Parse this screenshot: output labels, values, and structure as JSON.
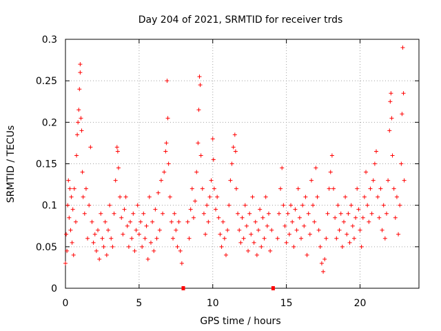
{
  "chart_data": {
    "type": "scatter",
    "title": "Day 204 of 2021, SRMTID for receiver trds",
    "xlabel": "GPS time / hours",
    "ylabel": "SRMTID / TECUs",
    "xlim": [
      0,
      24
    ],
    "ylim": [
      0,
      0.3
    ],
    "xticks": [
      0,
      5,
      10,
      15,
      20
    ],
    "xtick_labels": [
      "0",
      "5",
      "10",
      "15",
      "20"
    ],
    "yticks": [
      0,
      0.05,
      0.1,
      0.15,
      0.2,
      0.25,
      0.3
    ],
    "ytick_labels": [
      "0",
      "0.05",
      "0.1",
      "0.15",
      "0.2",
      "0.25",
      "0.3"
    ],
    "grid": true,
    "marker": "plus",
    "color": "#ff0000",
    "series_name": "SRMTID",
    "data_gaps_marked_at_hours": [
      8.0,
      14.1
    ],
    "points": [
      [
        0.0,
        0.03
      ],
      [
        0.05,
        0.065
      ],
      [
        0.1,
        0.045
      ],
      [
        0.15,
        0.1
      ],
      [
        0.2,
        0.13
      ],
      [
        0.25,
        0.085
      ],
      [
        0.3,
        0.12
      ],
      [
        0.35,
        0.07
      ],
      [
        0.4,
        0.11
      ],
      [
        0.45,
        0.055
      ],
      [
        0.5,
        0.095
      ],
      [
        0.55,
        0.04
      ],
      [
        0.6,
        0.12
      ],
      [
        0.7,
        0.08
      ],
      [
        0.75,
        0.16
      ],
      [
        0.8,
        0.185
      ],
      [
        0.85,
        0.2
      ],
      [
        0.9,
        0.215
      ],
      [
        0.95,
        0.24
      ],
      [
        1.0,
        0.27
      ],
      [
        1.0,
        0.26
      ],
      [
        1.05,
        0.205
      ],
      [
        1.1,
        0.19
      ],
      [
        1.15,
        0.14
      ],
      [
        1.2,
        0.11
      ],
      [
        1.3,
        0.09
      ],
      [
        1.4,
        0.12
      ],
      [
        1.5,
        0.06
      ],
      [
        1.6,
        0.1
      ],
      [
        1.7,
        0.17
      ],
      [
        1.8,
        0.08
      ],
      [
        1.9,
        0.055
      ],
      [
        2.0,
        0.065
      ],
      [
        2.1,
        0.045
      ],
      [
        2.2,
        0.07
      ],
      [
        2.3,
        0.035
      ],
      [
        2.4,
        0.09
      ],
      [
        2.5,
        0.06
      ],
      [
        2.6,
        0.05
      ],
      [
        2.7,
        0.08
      ],
      [
        2.8,
        0.04
      ],
      [
        2.9,
        0.07
      ],
      [
        3.0,
        0.1
      ],
      [
        3.1,
        0.06
      ],
      [
        3.2,
        0.05
      ],
      [
        3.3,
        0.09
      ],
      [
        3.4,
        0.13
      ],
      [
        3.5,
        0.17
      ],
      [
        3.55,
        0.165
      ],
      [
        3.6,
        0.145
      ],
      [
        3.7,
        0.11
      ],
      [
        3.8,
        0.085
      ],
      [
        3.9,
        0.065
      ],
      [
        4.0,
        0.095
      ],
      [
        4.1,
        0.11
      ],
      [
        4.2,
        0.075
      ],
      [
        4.3,
        0.05
      ],
      [
        4.4,
        0.08
      ],
      [
        4.5,
        0.06
      ],
      [
        4.6,
        0.09
      ],
      [
        4.7,
        0.045
      ],
      [
        4.8,
        0.07
      ],
      [
        4.9,
        0.1
      ],
      [
        5.0,
        0.065
      ],
      [
        5.1,
        0.08
      ],
      [
        5.2,
        0.05
      ],
      [
        5.3,
        0.09
      ],
      [
        5.4,
        0.06
      ],
      [
        5.5,
        0.075
      ],
      [
        5.6,
        0.035
      ],
      [
        5.7,
        0.11
      ],
      [
        5.8,
        0.055
      ],
      [
        5.9,
        0.08
      ],
      [
        6.0,
        0.045
      ],
      [
        6.1,
        0.095
      ],
      [
        6.2,
        0.06
      ],
      [
        6.3,
        0.115
      ],
      [
        6.4,
        0.07
      ],
      [
        6.5,
        0.13
      ],
      [
        6.6,
        0.09
      ],
      [
        6.7,
        0.14
      ],
      [
        6.8,
        0.165
      ],
      [
        6.85,
        0.175
      ],
      [
        6.9,
        0.25
      ],
      [
        6.95,
        0.205
      ],
      [
        7.0,
        0.15
      ],
      [
        7.1,
        0.11
      ],
      [
        7.2,
        0.08
      ],
      [
        7.3,
        0.06
      ],
      [
        7.4,
        0.09
      ],
      [
        7.5,
        0.07
      ],
      [
        7.6,
        0.05
      ],
      [
        7.7,
        0.08
      ],
      [
        7.8,
        0.045
      ],
      [
        7.9,
        0.03
      ],
      [
        8.3,
        0.08
      ],
      [
        8.4,
        0.06
      ],
      [
        8.5,
        0.095
      ],
      [
        8.6,
        0.12
      ],
      [
        8.7,
        0.085
      ],
      [
        8.8,
        0.105
      ],
      [
        8.9,
        0.14
      ],
      [
        9.0,
        0.175
      ],
      [
        9.05,
        0.215
      ],
      [
        9.1,
        0.255
      ],
      [
        9.15,
        0.245
      ],
      [
        9.2,
        0.16
      ],
      [
        9.3,
        0.12
      ],
      [
        9.4,
        0.09
      ],
      [
        9.5,
        0.065
      ],
      [
        9.6,
        0.1
      ],
      [
        9.7,
        0.08
      ],
      [
        9.8,
        0.11
      ],
      [
        9.9,
        0.13
      ],
      [
        10.0,
        0.18
      ],
      [
        10.05,
        0.155
      ],
      [
        10.1,
        0.12
      ],
      [
        10.2,
        0.095
      ],
      [
        10.3,
        0.11
      ],
      [
        10.4,
        0.085
      ],
      [
        10.5,
        0.065
      ],
      [
        10.6,
        0.05
      ],
      [
        10.7,
        0.08
      ],
      [
        10.8,
        0.06
      ],
      [
        10.9,
        0.04
      ],
      [
        11.0,
        0.07
      ],
      [
        11.1,
        0.1
      ],
      [
        11.2,
        0.13
      ],
      [
        11.3,
        0.15
      ],
      [
        11.4,
        0.17
      ],
      [
        11.5,
        0.185
      ],
      [
        11.55,
        0.165
      ],
      [
        11.6,
        0.12
      ],
      [
        11.7,
        0.09
      ],
      [
        11.8,
        0.07
      ],
      [
        11.9,
        0.055
      ],
      [
        12.0,
        0.085
      ],
      [
        12.1,
        0.06
      ],
      [
        12.2,
        0.1
      ],
      [
        12.3,
        0.075
      ],
      [
        12.4,
        0.045
      ],
      [
        12.5,
        0.09
      ],
      [
        12.6,
        0.065
      ],
      [
        12.7,
        0.11
      ],
      [
        12.8,
        0.055
      ],
      [
        12.9,
        0.08
      ],
      [
        13.0,
        0.04
      ],
      [
        13.1,
        0.07
      ],
      [
        13.2,
        0.095
      ],
      [
        13.3,
        0.05
      ],
      [
        13.4,
        0.085
      ],
      [
        13.5,
        0.06
      ],
      [
        13.6,
        0.11
      ],
      [
        13.7,
        0.075
      ],
      [
        13.8,
        0.09
      ],
      [
        13.9,
        0.045
      ],
      [
        14.0,
        0.07
      ],
      [
        14.4,
        0.06
      ],
      [
        14.5,
        0.09
      ],
      [
        14.6,
        0.12
      ],
      [
        14.7,
        0.145
      ],
      [
        14.8,
        0.1
      ],
      [
        14.9,
        0.075
      ],
      [
        15.0,
        0.055
      ],
      [
        15.1,
        0.09
      ],
      [
        15.2,
        0.065
      ],
      [
        15.3,
        0.1
      ],
      [
        15.4,
        0.08
      ],
      [
        15.5,
        0.05
      ],
      [
        15.6,
        0.095
      ],
      [
        15.7,
        0.07
      ],
      [
        15.8,
        0.12
      ],
      [
        15.9,
        0.085
      ],
      [
        16.0,
        0.06
      ],
      [
        16.1,
        0.1
      ],
      [
        16.2,
        0.075
      ],
      [
        16.3,
        0.11
      ],
      [
        16.4,
        0.04
      ],
      [
        16.5,
        0.09
      ],
      [
        16.6,
        0.065
      ],
      [
        16.7,
        0.13
      ],
      [
        16.8,
        0.1
      ],
      [
        16.9,
        0.08
      ],
      [
        17.0,
        0.145
      ],
      [
        17.1,
        0.11
      ],
      [
        17.2,
        0.07
      ],
      [
        17.3,
        0.05
      ],
      [
        17.4,
        0.03
      ],
      [
        17.5,
        0.02
      ],
      [
        17.6,
        0.035
      ],
      [
        17.7,
        0.06
      ],
      [
        17.8,
        0.09
      ],
      [
        17.9,
        0.12
      ],
      [
        18.0,
        0.14
      ],
      [
        18.1,
        0.16
      ],
      [
        18.2,
        0.12
      ],
      [
        18.3,
        0.085
      ],
      [
        18.4,
        0.06
      ],
      [
        18.5,
        0.1
      ],
      [
        18.6,
        0.07
      ],
      [
        18.7,
        0.09
      ],
      [
        18.8,
        0.05
      ],
      [
        18.9,
        0.08
      ],
      [
        19.0,
        0.11
      ],
      [
        19.1,
        0.065
      ],
      [
        19.2,
        0.09
      ],
      [
        19.3,
        0.055
      ],
      [
        19.4,
        0.1
      ],
      [
        19.5,
        0.075
      ],
      [
        19.6,
        0.06
      ],
      [
        19.7,
        0.085
      ],
      [
        19.8,
        0.12
      ],
      [
        19.9,
        0.095
      ],
      [
        20.0,
        0.07
      ],
      [
        20.1,
        0.05
      ],
      [
        20.2,
        0.085
      ],
      [
        20.3,
        0.11
      ],
      [
        20.4,
        0.14
      ],
      [
        20.5,
        0.1
      ],
      [
        20.6,
        0.08
      ],
      [
        20.7,
        0.12
      ],
      [
        20.8,
        0.09
      ],
      [
        20.9,
        0.13
      ],
      [
        21.0,
        0.15
      ],
      [
        21.1,
        0.165
      ],
      [
        21.2,
        0.11
      ],
      [
        21.3,
        0.085
      ],
      [
        21.4,
        0.12
      ],
      [
        21.5,
        0.07
      ],
      [
        21.6,
        0.1
      ],
      [
        21.7,
        0.06
      ],
      [
        21.8,
        0.09
      ],
      [
        21.9,
        0.13
      ],
      [
        22.0,
        0.19
      ],
      [
        22.05,
        0.225
      ],
      [
        22.1,
        0.235
      ],
      [
        22.15,
        0.205
      ],
      [
        22.2,
        0.16
      ],
      [
        22.3,
        0.12
      ],
      [
        22.4,
        0.085
      ],
      [
        22.5,
        0.11
      ],
      [
        22.6,
        0.065
      ],
      [
        22.7,
        0.1
      ],
      [
        22.8,
        0.15
      ],
      [
        22.85,
        0.21
      ],
      [
        22.9,
        0.29
      ],
      [
        22.95,
        0.235
      ],
      [
        23.0,
        0.13
      ]
    ]
  }
}
